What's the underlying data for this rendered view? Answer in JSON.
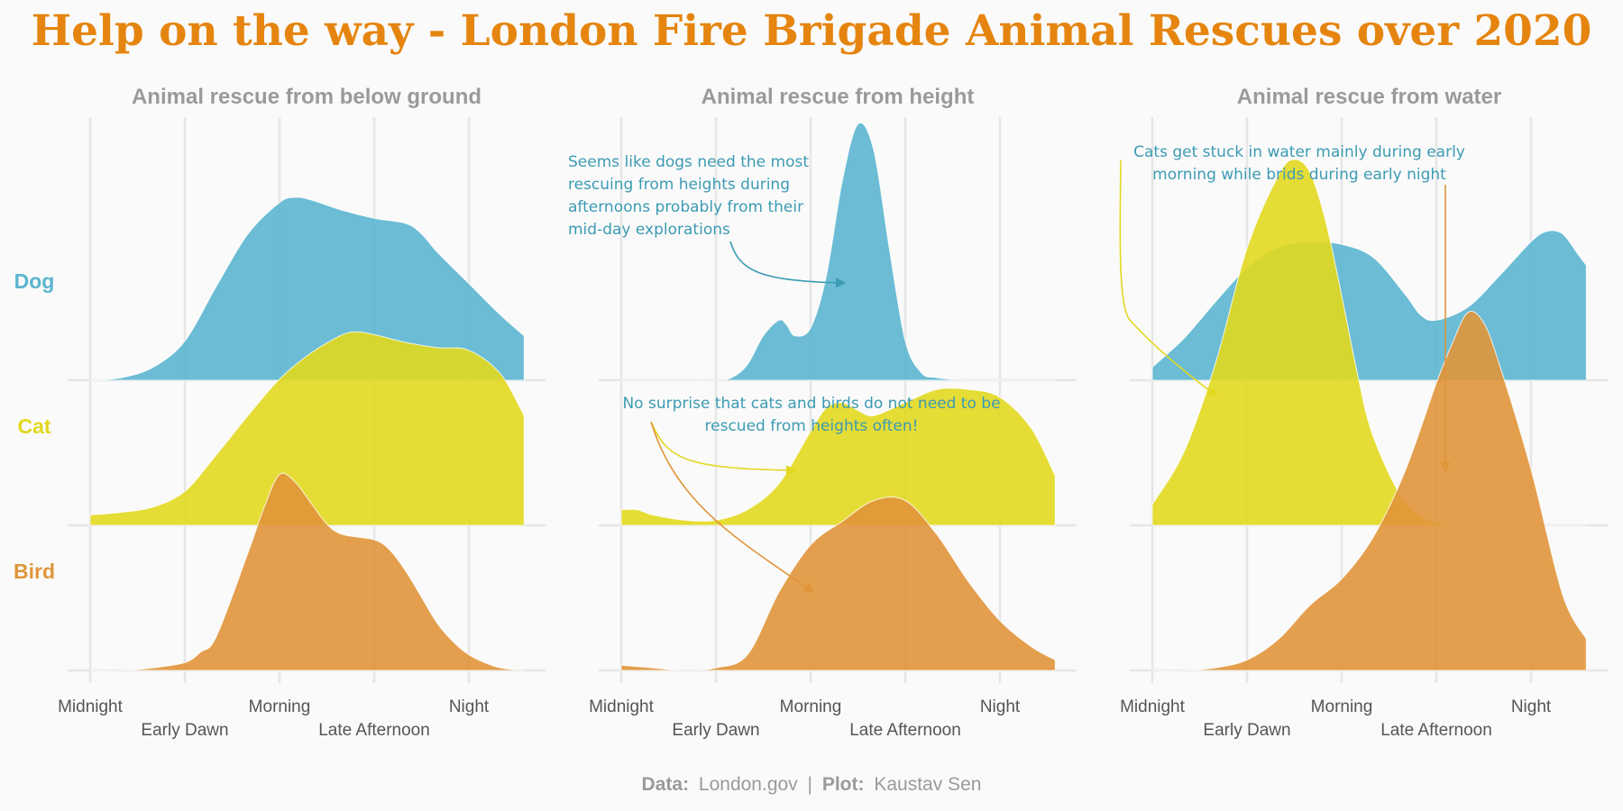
{
  "title": "Help on the way - London Fire Brigade Animal Rescues over 2020",
  "caption": {
    "data_label": "Data:",
    "data_value": "London.gov",
    "separator": "|",
    "plot_label": "Plot:",
    "plot_value": "Kaustav Sen"
  },
  "colors": {
    "title": "#e5850f",
    "panel_title": "#9a9a9a",
    "grid": "#e6e6e6",
    "tick": "#555555",
    "caption": "#9a9a9a",
    "annotation_text": "#3c9bb3",
    "dog": "#5bb5cf",
    "cat": "#e2d81f",
    "bird": "#e0953a",
    "background": "#fafafa"
  },
  "annotations": [
    {
      "text": "Seems like dogs need the most\nrescuing from heights during\nafternoons probably from their\nmid-day explorations",
      "color": "#3c9bb3"
    },
    {
      "text": "No surprise that cats and birds do not need to be\nrescued from heights often!",
      "color": "#3c9bb3"
    },
    {
      "text": "Cats get stuck in water mainly during early\nmorning while brids during early night",
      "color": "#3c9bb3"
    }
  ],
  "chart_data": {
    "type": "area",
    "subtype": "ridgeline",
    "x_ticks": [
      0,
      6,
      12,
      18,
      24
    ],
    "x_tick_labels": [
      "Midnight",
      "Early Dawn",
      "Morning",
      "Late Afternoon",
      "Night"
    ],
    "xlim": [
      0,
      27.5
    ],
    "rows": [
      {
        "name": "Dog",
        "color": "#5bb5cf"
      },
      {
        "name": "Cat",
        "color": "#e2d81f"
      },
      {
        "name": "Bird",
        "color": "#e0953a"
      }
    ],
    "panels": [
      {
        "title": "Animal rescue from below ground",
        "series": [
          {
            "name": "Dog",
            "x": [
              0,
              2,
              4,
              6,
              8,
              10,
              12,
              13,
              14,
              16,
              18,
              20,
              21,
              22,
              24,
              26,
              27.5
            ],
            "y": [
              0,
              0.01,
              0.05,
              0.15,
              0.36,
              0.56,
              0.68,
              0.7,
              0.69,
              0.65,
              0.62,
              0.6,
              0.56,
              0.49,
              0.37,
              0.25,
              0.17
            ]
          },
          {
            "name": "Cat",
            "x": [
              0,
              2,
              4,
              6,
              8,
              10,
              12,
              14,
              16,
              17,
              18,
              20,
              22,
              24,
              26,
              27.5
            ],
            "y": [
              0.04,
              0.05,
              0.07,
              0.13,
              0.27,
              0.42,
              0.56,
              0.66,
              0.73,
              0.74,
              0.73,
              0.7,
              0.68,
              0.67,
              0.58,
              0.42
            ]
          },
          {
            "name": "Bird",
            "x": [
              0,
              2,
              4,
              6,
              7,
              8,
              10,
              11,
              12,
              13,
              14,
              15,
              16,
              18,
              19,
              20,
              21,
              22,
              23,
              24,
              25,
              26,
              27.5
            ],
            "y": [
              0,
              0,
              0.01,
              0.03,
              0.07,
              0.13,
              0.45,
              0.62,
              0.75,
              0.72,
              0.64,
              0.56,
              0.52,
              0.5,
              0.46,
              0.38,
              0.28,
              0.18,
              0.11,
              0.06,
              0.03,
              0.01,
              0
            ]
          }
        ]
      },
      {
        "title": "Animal rescue from height",
        "series": [
          {
            "name": "Dog",
            "x": [
              0,
              2,
              4,
              6,
              7,
              8,
              9,
              10,
              10.5,
              11,
              12,
              13,
              14,
              15,
              16,
              17,
              18,
              19,
              20,
              22,
              24,
              27.5
            ],
            "y": [
              0,
              0,
              0,
              0,
              0.01,
              0.06,
              0.17,
              0.23,
              0.21,
              0.17,
              0.2,
              0.4,
              0.76,
              0.98,
              0.88,
              0.5,
              0.15,
              0.03,
              0.01,
              0,
              0,
              0
            ]
          },
          {
            "name": "Cat",
            "x": [
              0,
              1,
              2,
              4,
              6,
              8,
              10,
              12,
              13,
              14,
              15,
              16,
              18,
              20,
              22,
              24,
              26,
              27.5
            ],
            "y": [
              0.06,
              0.06,
              0.04,
              0.02,
              0.02,
              0.06,
              0.16,
              0.36,
              0.45,
              0.47,
              0.44,
              0.42,
              0.47,
              0.52,
              0.52,
              0.49,
              0.37,
              0.19
            ]
          },
          {
            "name": "Bird",
            "x": [
              0,
              2,
              4,
              6,
              8,
              10,
              12,
              14,
              16,
              18,
              20,
              22,
              24,
              26,
              27.5
            ],
            "y": [
              0.02,
              0.01,
              0,
              0.01,
              0.06,
              0.3,
              0.48,
              0.57,
              0.65,
              0.65,
              0.52,
              0.34,
              0.19,
              0.09,
              0.04
            ]
          }
        ]
      },
      {
        "title": "Animal rescue from water",
        "series": [
          {
            "name": "Dog",
            "x": [
              0,
              2,
              4,
              6,
              8,
              10,
              12,
              14,
              16,
              17,
              18,
              20,
              22,
              24,
              25,
              26,
              27,
              27.5
            ],
            "y": [
              0.05,
              0.16,
              0.3,
              0.43,
              0.51,
              0.53,
              0.52,
              0.47,
              0.33,
              0.25,
              0.23,
              0.28,
              0.4,
              0.53,
              0.57,
              0.56,
              0.48,
              0.44
            ]
          },
          {
            "name": "Cat",
            "x": [
              0,
              2,
              4,
              6,
              8,
              9,
              10,
              11,
              12,
              13,
              14,
              16,
              18,
              20,
              22,
              24,
              26,
              27.5
            ],
            "y": [
              0.08,
              0.28,
              0.62,
              1.06,
              1.34,
              1.4,
              1.35,
              1.16,
              0.88,
              0.58,
              0.34,
              0.09,
              0.01,
              0,
              0,
              0,
              0,
              0
            ]
          },
          {
            "name": "Bird",
            "x": [
              0,
              2,
              4,
              6,
              8,
              10,
              12,
              14,
              16,
              18,
              19,
              20,
              21,
              22,
              24,
              26,
              27.5
            ],
            "y": [
              0,
              0,
              0.01,
              0.04,
              0.12,
              0.25,
              0.35,
              0.51,
              0.76,
              1.1,
              1.25,
              1.37,
              1.33,
              1.17,
              0.77,
              0.29,
              0.12
            ]
          }
        ]
      }
    ]
  }
}
